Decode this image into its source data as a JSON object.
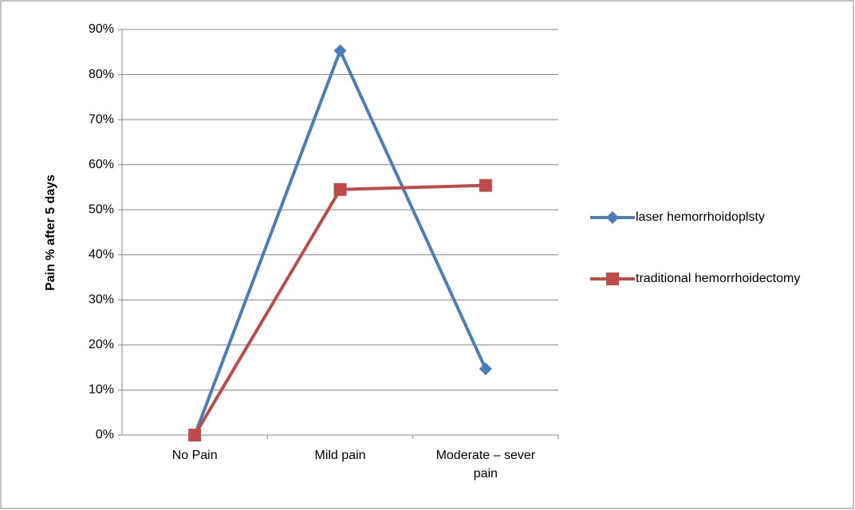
{
  "chart_data": {
    "type": "line",
    "y_label": "Pain % after 5 days",
    "categories": [
      "No Pain",
      "Mild pain",
      "Moderate – sever pain"
    ],
    "series": [
      {
        "name": "laser hemorrhoidoplsty",
        "color": "#4a7ebb",
        "marker": "diamond",
        "values": [
          0,
          85.3,
          14.7
        ]
      },
      {
        "name": "traditional hemorrhoidectomy",
        "color": "#be4b48",
        "marker": "square",
        "values": [
          0,
          54.5,
          55.4
        ]
      }
    ],
    "ylim": [
      0,
      90
    ],
    "yticks": [
      {
        "value": 0,
        "label": "0%"
      },
      {
        "value": 10,
        "label": "10%"
      },
      {
        "value": 20,
        "label": "20%"
      },
      {
        "value": 30,
        "label": "30%"
      },
      {
        "value": 40,
        "label": "40%"
      },
      {
        "value": 50,
        "label": "50%"
      },
      {
        "value": 60,
        "label": "60%"
      },
      {
        "value": 70,
        "label": "70%"
      },
      {
        "value": 80,
        "label": "80%"
      },
      {
        "value": 90,
        "label": "90%"
      }
    ],
    "grid": true,
    "legend": "right"
  }
}
